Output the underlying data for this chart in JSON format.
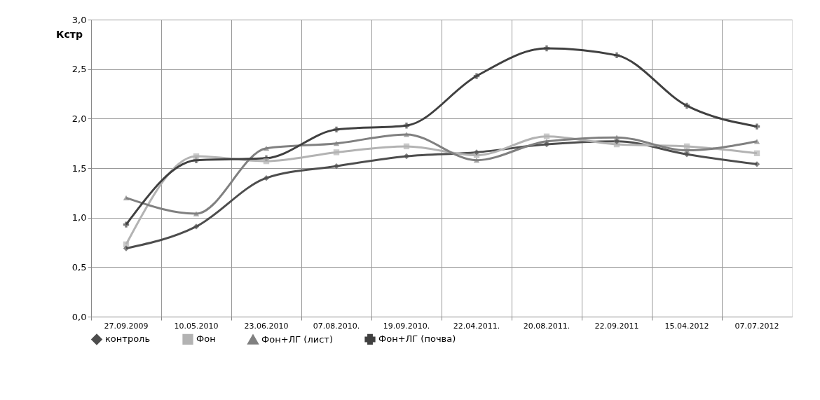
{
  "chart_data": {
    "type": "line",
    "ylabel": "Кстр",
    "categories": [
      "27.09.2009",
      "10.05.2010",
      "23.06.2010",
      "07.08.2010.",
      "19.09.2010.",
      "22.04.2011.",
      "20.08.2011.",
      "22.09.2011",
      "15.04.2012",
      "07.07.2012"
    ],
    "series": [
      {
        "name": "контроль",
        "color": "#4d4d4d",
        "marker": "diamond",
        "values": [
          0.69,
          0.91,
          1.4,
          1.52,
          1.62,
          1.66,
          1.74,
          1.77,
          1.64,
          1.54
        ]
      },
      {
        "name": "Фон",
        "color": "#b3b3b3",
        "marker": "square",
        "values": [
          0.73,
          1.62,
          1.57,
          1.66,
          1.72,
          1.63,
          1.82,
          1.74,
          1.72,
          1.65
        ]
      },
      {
        "name": "Фон+ЛГ (лист)",
        "color": "#808080",
        "marker": "triangle",
        "values": [
          1.2,
          1.04,
          1.7,
          1.75,
          1.84,
          1.58,
          1.77,
          1.81,
          1.68,
          1.77
        ]
      },
      {
        "name": "Фон+ЛГ (почва)",
        "color": "#404040",
        "marker": "cross",
        "values": [
          0.93,
          1.58,
          1.6,
          1.89,
          1.93,
          2.43,
          2.71,
          2.64,
          2.13,
          1.92
        ]
      }
    ],
    "ylim": [
      0,
      3
    ],
    "yticks": [
      {
        "value": 0,
        "label": "0,0"
      },
      {
        "value": 0.5,
        "label": "0,5"
      },
      {
        "value": 1,
        "label": "1,0"
      },
      {
        "value": 1.5,
        "label": "1,5"
      },
      {
        "value": 2,
        "label": "2,0"
      },
      {
        "value": 2.5,
        "label": "2,5"
      },
      {
        "value": 3,
        "label": "3,0"
      }
    ],
    "grid": true,
    "legend": "bottom",
    "line_style": "solid"
  }
}
